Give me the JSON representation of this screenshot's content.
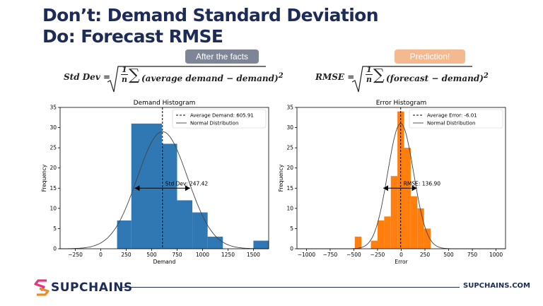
{
  "header": {
    "line1": "Don’t: Demand Standard Deviation",
    "line2": "Do: Forecast RMSE"
  },
  "badges": {
    "left": "After the facts",
    "right": "Prediction!"
  },
  "formulas": {
    "std_lhs": "Std Dev =",
    "std_body": "(average demand − demand)",
    "rmse_lhs": "RMSE =",
    "rmse_body": "(forecast − demand)",
    "frac_num": "1",
    "frac_den": "n",
    "exponent": "2"
  },
  "footer": {
    "brand": "SUPCHAINS",
    "website": "SUPCHAINS.COM"
  },
  "colors": {
    "demand_bars": "#2f78b4",
    "error_bars": "#ff7f0e",
    "title": "#1c2b57"
  },
  "chart_data": [
    {
      "type": "bar",
      "title": "Demand Histogram",
      "xlabel": "Demand",
      "ylabel": "Frequency",
      "xlim": [
        -400,
        1650
      ],
      "ylim": [
        0,
        35
      ],
      "xticks": [
        -250,
        0,
        250,
        500,
        750,
        1000,
        1250,
        1500
      ],
      "yticks": [
        0,
        5,
        10,
        15,
        20,
        25,
        30,
        35
      ],
      "bins": [
        {
          "x0": 160,
          "x1": 300,
          "count": 7
        },
        {
          "x0": 300,
          "x1": 600,
          "count": 31
        },
        {
          "x0": 600,
          "x1": 750,
          "count": 26
        },
        {
          "x0": 750,
          "x1": 900,
          "count": 12
        },
        {
          "x0": 900,
          "x1": 1050,
          "count": 9
        },
        {
          "x0": 1050,
          "x1": 1200,
          "count": 3
        },
        {
          "x0": 1500,
          "x1": 1650,
          "count": 2
        }
      ],
      "normal": {
        "mean": 605.91,
        "sd": 247.42,
        "peak": 29
      },
      "mean_line": 605.91,
      "arrow": {
        "from": 333,
        "to": 878,
        "y": 15
      },
      "annotation": "Std Dev: 247.42",
      "legend": [
        "Average Demand: 605.91",
        "Normal Distribution"
      ],
      "legend_position": "top-right",
      "bar_color": "#2f78b4"
    },
    {
      "type": "bar",
      "title": "Error Histogram",
      "xlabel": "Error",
      "ylabel": "Frequency",
      "xlim": [
        -1100,
        1100
      ],
      "ylim": [
        0,
        35
      ],
      "xticks": [
        -1000,
        -750,
        -500,
        -250,
        0,
        250,
        500,
        750,
        1000
      ],
      "yticks": [
        0,
        5,
        10,
        15,
        20,
        25,
        30,
        35
      ],
      "bins": [
        {
          "x0": -490,
          "x1": -420,
          "count": 3
        },
        {
          "x0": -320,
          "x1": -250,
          "count": 2
        },
        {
          "x0": -250,
          "x1": -180,
          "count": 7
        },
        {
          "x0": -180,
          "x1": -110,
          "count": 8
        },
        {
          "x0": -110,
          "x1": -40,
          "count": 18
        },
        {
          "x0": -40,
          "x1": 30,
          "count": 34
        },
        {
          "x0": 30,
          "x1": 100,
          "count": 25
        },
        {
          "x0": 100,
          "x1": 170,
          "count": 13
        },
        {
          "x0": 170,
          "x1": 240,
          "count": 10
        },
        {
          "x0": 240,
          "x1": 310,
          "count": 5
        }
      ],
      "normal": {
        "mean": -6.01,
        "sd": 136.9,
        "peak": 31
      },
      "mean_line": -6.01,
      "arrow": {
        "from": -190,
        "to": 165,
        "y": 15
      },
      "annotation": "RMSE: 136.90",
      "legend": [
        "Average Error: -6.01",
        "Normal Distribution"
      ],
      "legend_position": "top-right",
      "bar_color": "#ff7f0e"
    }
  ]
}
